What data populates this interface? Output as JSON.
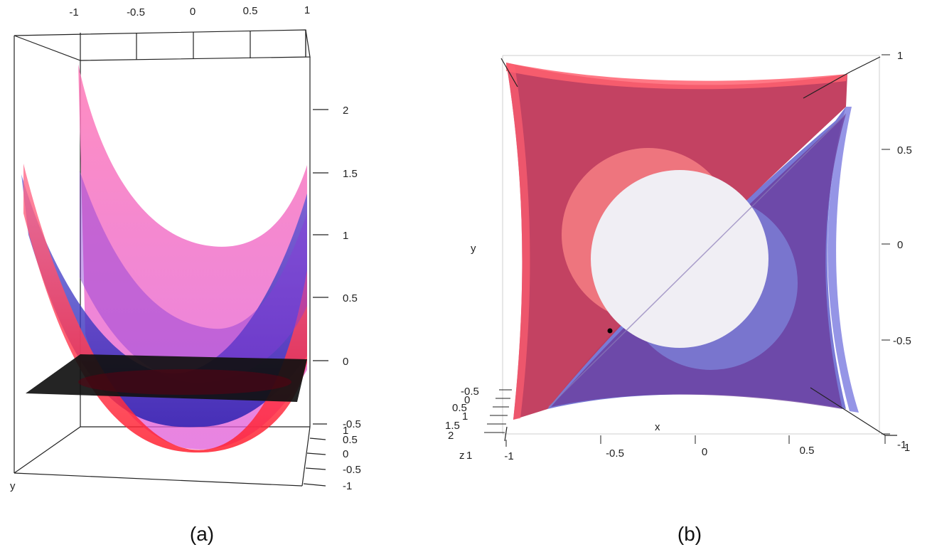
{
  "panel_a": {
    "caption": "(a)",
    "top_ticks": [
      "-1",
      "-0.5",
      "0",
      "0.5",
      "1"
    ],
    "z_ticks": [
      "2",
      "1.5",
      "1",
      "0.5",
      "0"
    ],
    "y_ticks_top": "-0.5",
    "y_ticks": [
      "1",
      "0.5",
      "0",
      "-0.5",
      "-1"
    ],
    "y_label": "y",
    "surface_colors": {
      "red": "#ff2a3a",
      "blue": "#3a32c8",
      "plane": "#111111"
    }
  },
  "panel_b": {
    "caption": "(b)",
    "right_ticks": [
      "1",
      "0.5",
      "0",
      "-0.5",
      "-1"
    ],
    "bottom_ticks": [
      "-1",
      "-0.5",
      "0",
      "0.5",
      "1"
    ],
    "x_label": "x",
    "y_label": "y",
    "z_label": "z",
    "z_ticks": [
      "-0.5",
      "0",
      "0.5",
      "1",
      "1.5",
      "2"
    ],
    "surface_colors": {
      "red": "#c0385a",
      "blue": "#6b3c9a",
      "disk": "#f0eef4"
    }
  }
}
